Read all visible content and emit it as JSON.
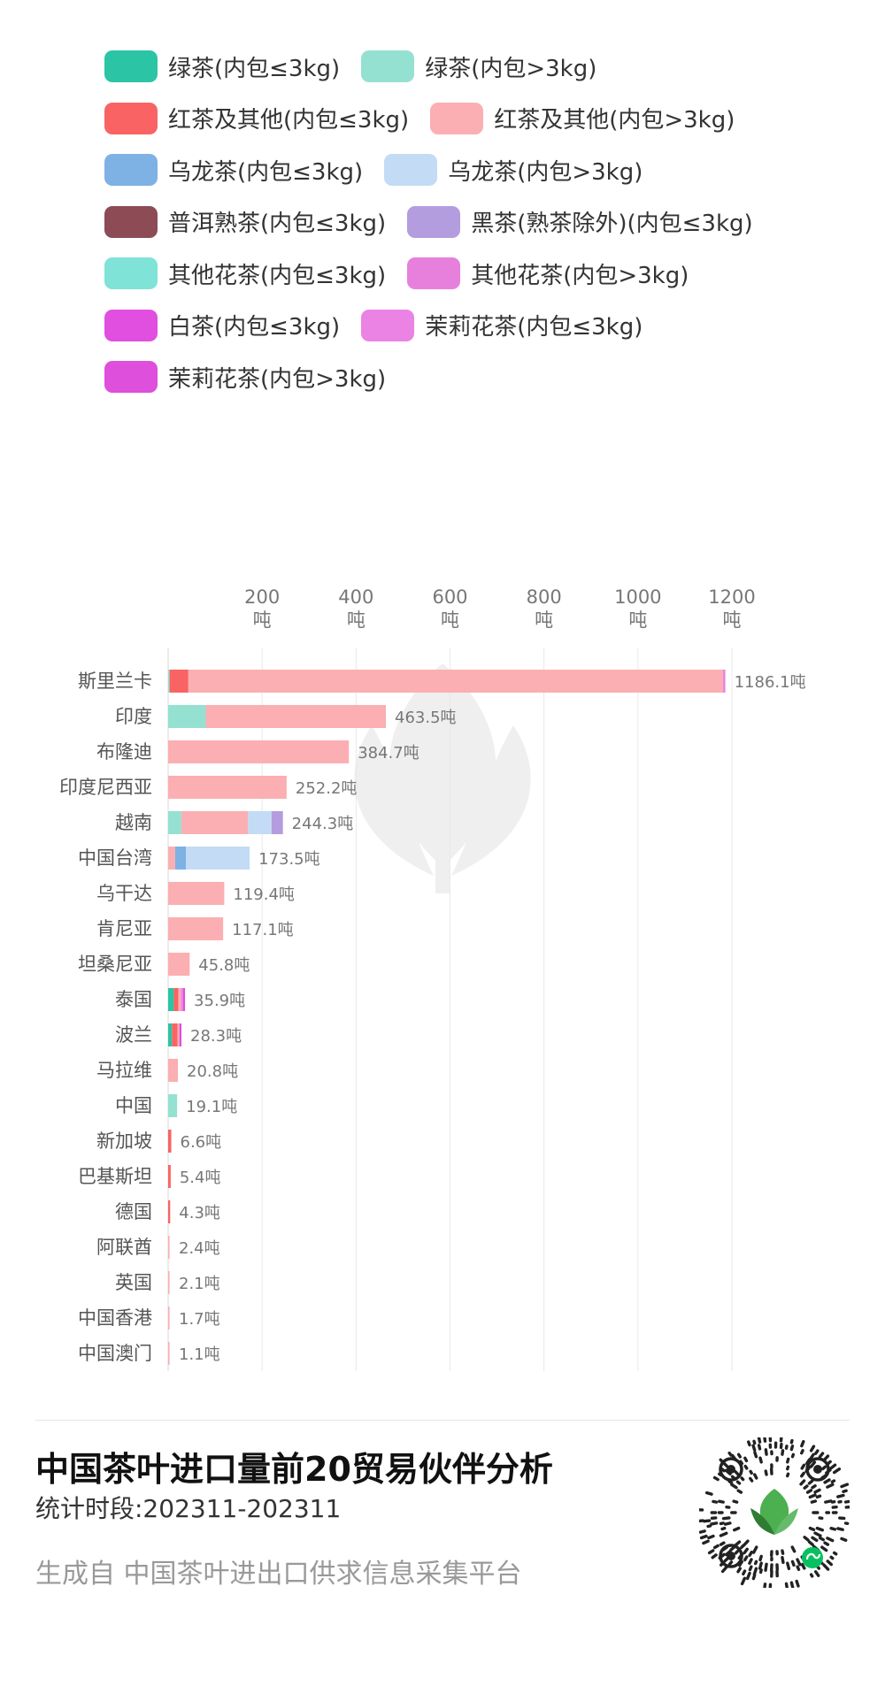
{
  "legend": [
    {
      "label": "绿茶(内包≤3kg)",
      "color": "#2bc4a4"
    },
    {
      "label": "绿茶(内包>3kg)",
      "color": "#94e1d2"
    },
    {
      "label": "红茶及其他(内包≤3kg)",
      "color": "#f96363"
    },
    {
      "label": "红茶及其他(内包>3kg)",
      "color": "#fbafb2"
    },
    {
      "label": "乌龙茶(内包≤3kg)",
      "color": "#7eb1e4"
    },
    {
      "label": "乌龙茶(内包>3kg)",
      "color": "#c3dbf4"
    },
    {
      "label": "普洱熟茶(内包≤3kg)",
      "color": "#8c4b55"
    },
    {
      "label": "黑茶(熟茶除外)(内包≤3kg)",
      "color": "#b39ddf"
    },
    {
      "label": "其他花茶(内包≤3kg)",
      "color": "#7fe3d7"
    },
    {
      "label": "其他花茶(内包>3kg)",
      "color": "#e780dd"
    },
    {
      "label": "白茶(内包≤3kg)",
      "color": "#e04fdf"
    },
    {
      "label": "茉莉花茶(内包≤3kg)",
      "color": "#ea83e4"
    },
    {
      "label": "茉莉花茶(内包>3kg)",
      "color": "#de4fdc"
    }
  ],
  "chart_data": {
    "type": "bar",
    "orientation": "horizontal",
    "stacked": true,
    "x_ticks": [
      200,
      400,
      600,
      800,
      1000,
      1200
    ],
    "x_unit": "吨",
    "xlim": [
      0,
      1200
    ],
    "grid": true,
    "value_suffix": "吨",
    "categories": [
      "斯里兰卡",
      "印度",
      "布隆迪",
      "印度尼西亚",
      "越南",
      "中国台湾",
      "乌干达",
      "肯尼亚",
      "坦桑尼亚",
      "泰国",
      "波兰",
      "马拉维",
      "中国",
      "新加坡",
      "巴基斯坦",
      "德国",
      "阿联酋",
      "英国",
      "中国香港",
      "中国澳门"
    ],
    "totals": [
      1186.1,
      463.5,
      384.7,
      252.2,
      244.3,
      173.5,
      119.4,
      117.1,
      45.8,
      35.9,
      28.3,
      20.8,
      19.1,
      6.6,
      5.4,
      4.3,
      2.4,
      2.1,
      1.7,
      1.1
    ],
    "total_labels": [
      "1186.1吨",
      "463.5吨",
      "384.7吨",
      "252.2吨",
      "244.3吨",
      "173.5吨",
      "119.4吨",
      "117.1吨",
      "45.8吨",
      "35.9吨",
      "28.3吨",
      "20.8吨",
      "19.1吨",
      "6.6吨",
      "5.4吨",
      "4.3吨",
      "2.4吨",
      "2.1吨",
      "1.7吨",
      "1.1吨"
    ],
    "segments": [
      [
        {
          "s": 1,
          "v": 3
        },
        {
          "s": 2,
          "v": 40
        },
        {
          "s": 3,
          "v": 1138
        },
        {
          "s": 11,
          "v": 5.1
        }
      ],
      [
        {
          "s": 1,
          "v": 80
        },
        {
          "s": 3,
          "v": 383.5
        }
      ],
      [
        {
          "s": 3,
          "v": 384.7
        }
      ],
      [
        {
          "s": 3,
          "v": 252.2
        }
      ],
      [
        {
          "s": 1,
          "v": 28
        },
        {
          "s": 3,
          "v": 142
        },
        {
          "s": 5,
          "v": 50
        },
        {
          "s": 7,
          "v": 24.3
        }
      ],
      [
        {
          "s": 3,
          "v": 15
        },
        {
          "s": 4,
          "v": 23
        },
        {
          "s": 5,
          "v": 135.5
        }
      ],
      [
        {
          "s": 3,
          "v": 119.4
        }
      ],
      [
        {
          "s": 3,
          "v": 117.1
        }
      ],
      [
        {
          "s": 3,
          "v": 45.8
        }
      ],
      [
        {
          "s": 0,
          "v": 12
        },
        {
          "s": 2,
          "v": 10
        },
        {
          "s": 3,
          "v": 5
        },
        {
          "s": 11,
          "v": 5
        },
        {
          "s": 12,
          "v": 3.9
        }
      ],
      [
        {
          "s": 0,
          "v": 8
        },
        {
          "s": 2,
          "v": 12
        },
        {
          "s": 3,
          "v": 4
        },
        {
          "s": 12,
          "v": 4.3
        }
      ],
      [
        {
          "s": 3,
          "v": 20.8
        }
      ],
      [
        {
          "s": 1,
          "v": 19.1
        }
      ],
      [
        {
          "s": 2,
          "v": 6.6
        }
      ],
      [
        {
          "s": 2,
          "v": 5.4
        }
      ],
      [
        {
          "s": 2,
          "v": 4.3
        }
      ],
      [
        {
          "s": 3,
          "v": 2.4
        }
      ],
      [
        {
          "s": 3,
          "v": 2.1
        }
      ],
      [
        {
          "s": 3,
          "v": 1.7
        }
      ],
      [
        {
          "s": 3,
          "v": 1.1
        }
      ]
    ]
  },
  "footer": {
    "title": "中国茶叶进口量前20贸易伙伴分析",
    "period": "统计时段:202311-202311",
    "source": "生成自 中国茶叶进出口供求信息采集平台"
  }
}
